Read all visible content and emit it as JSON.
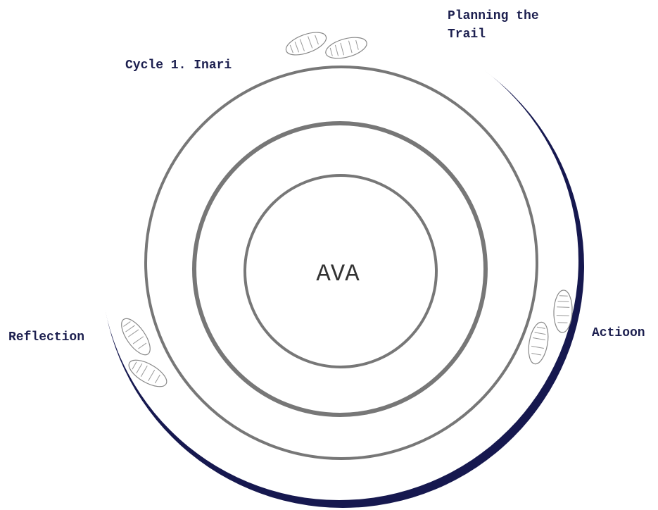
{
  "center_label": "AVA",
  "cycle_label": "Cycle 1. Inari",
  "stages": {
    "planning": [
      "Planning the",
      "Trail"
    ],
    "reflection": "Reflection",
    "action": "Actioon"
  }
}
